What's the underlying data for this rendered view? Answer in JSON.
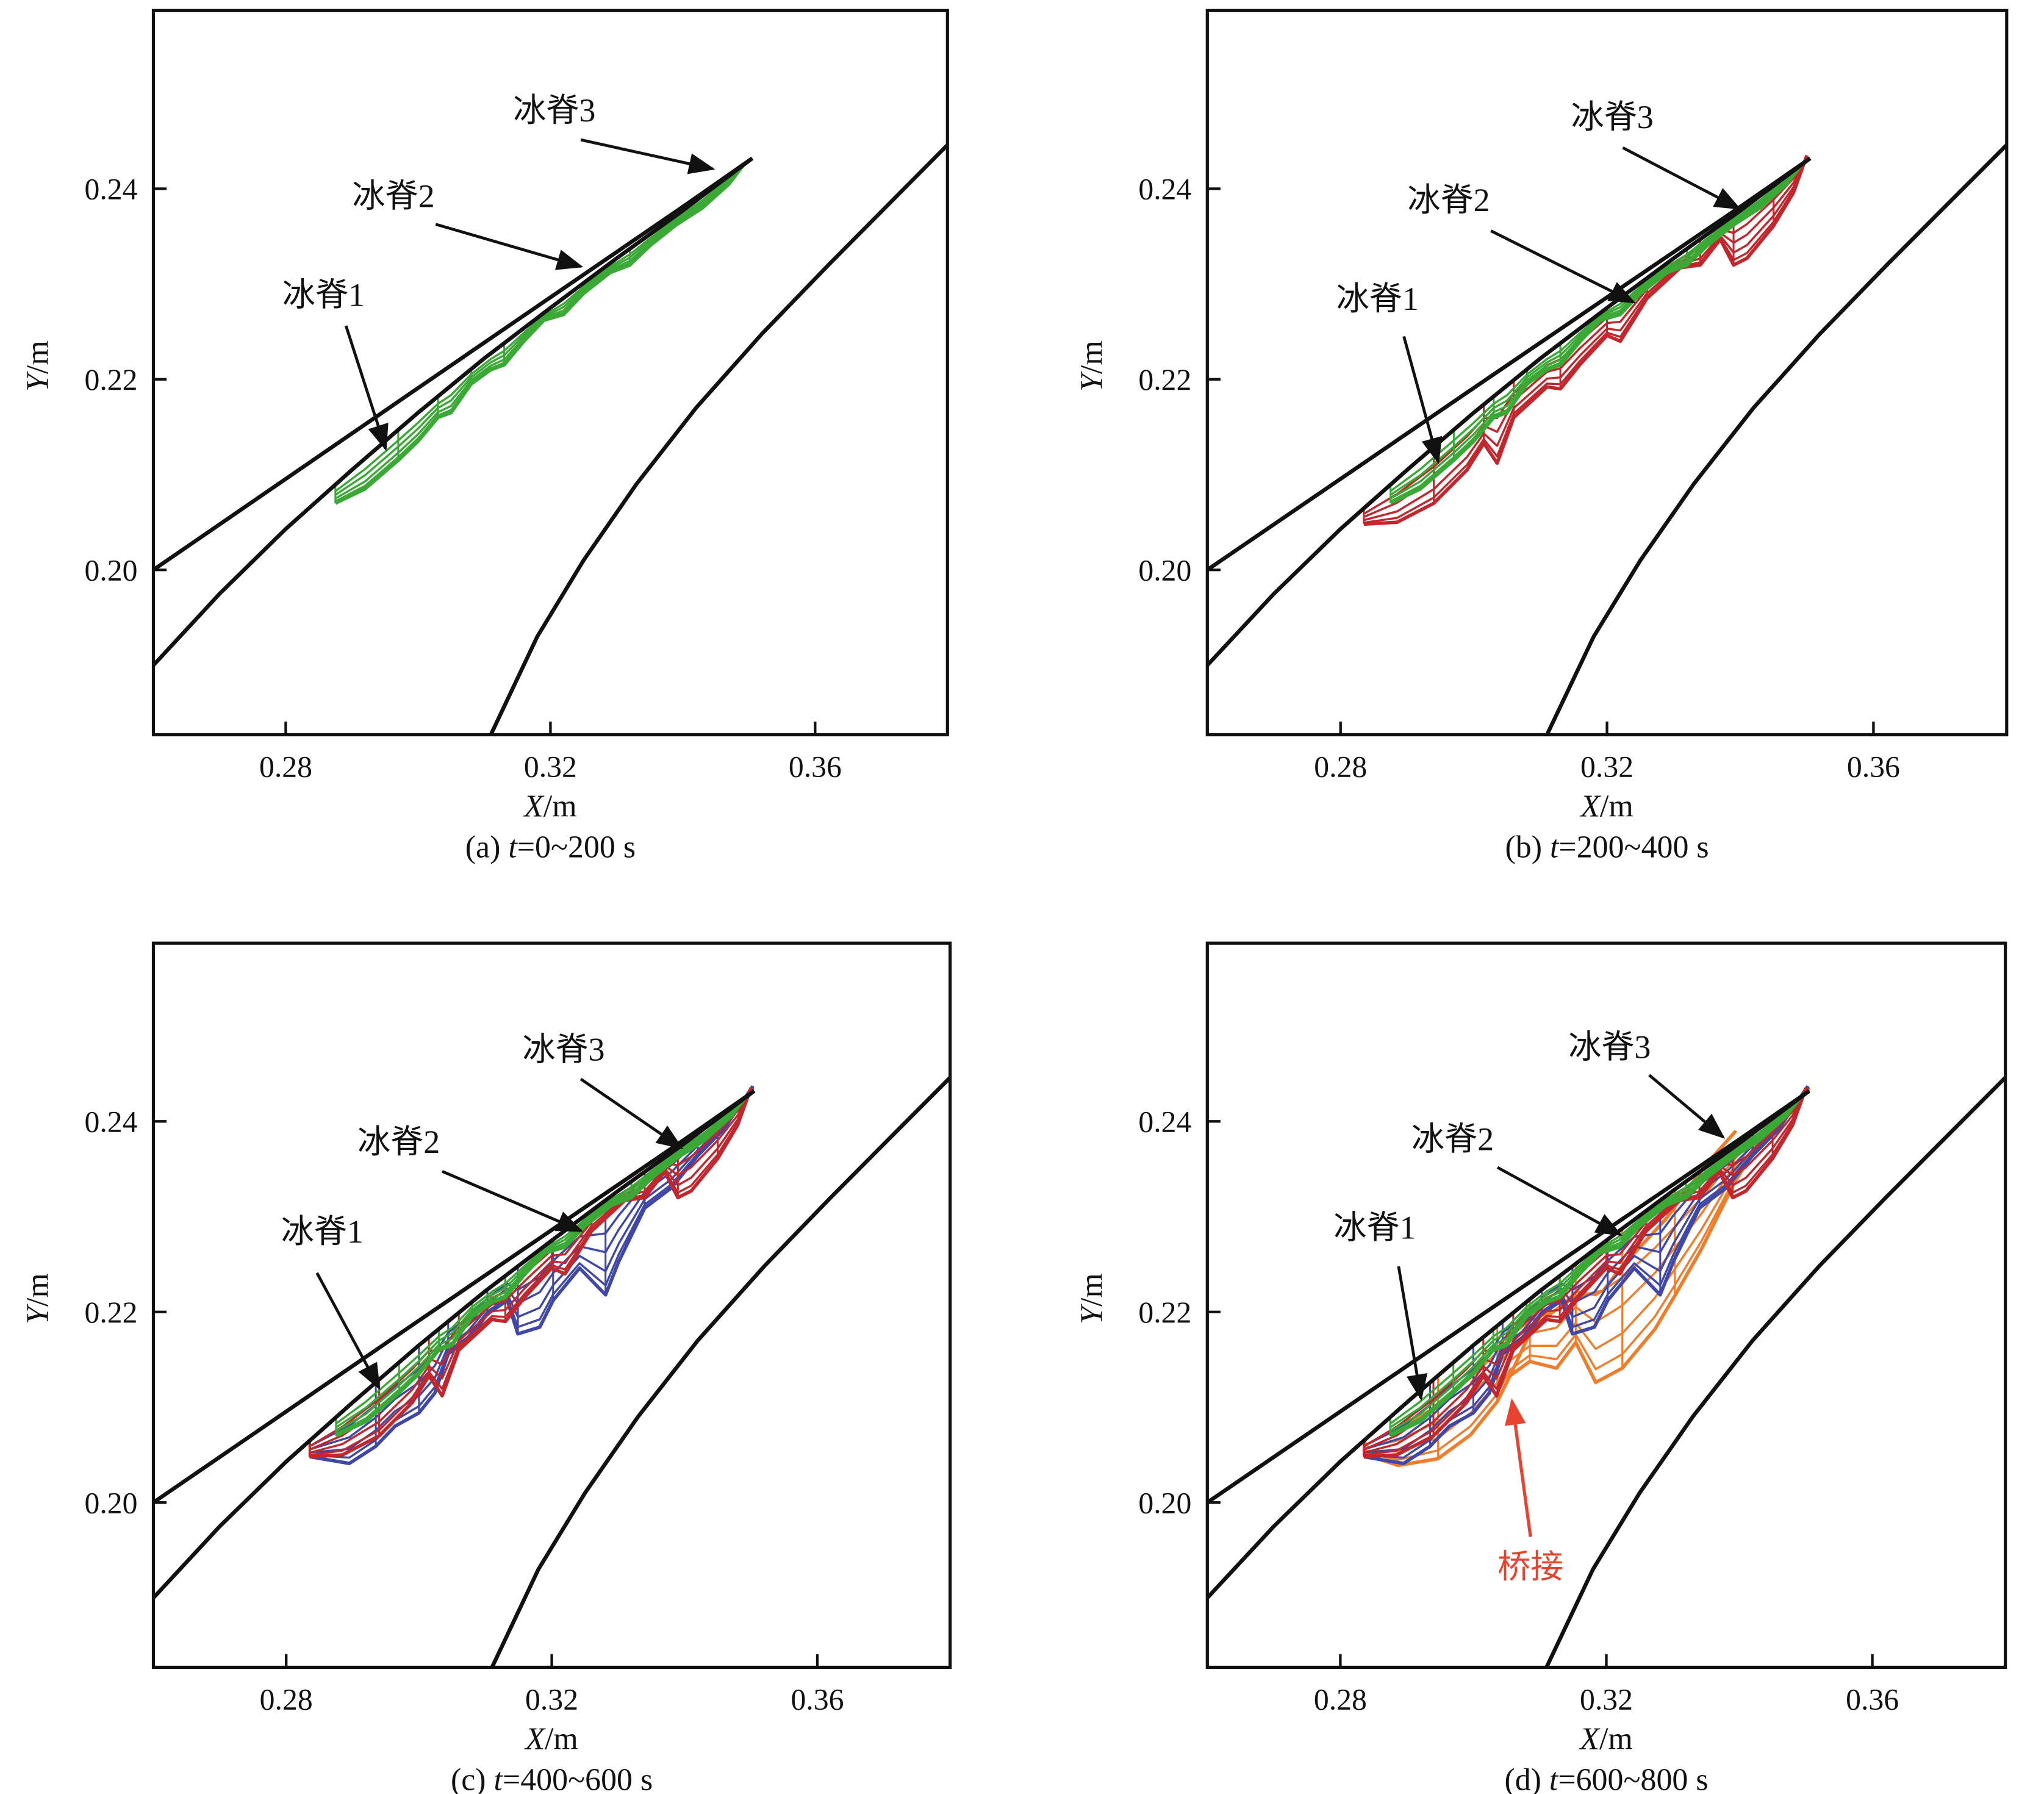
{
  "chart_data": {
    "type": "line",
    "xlim": [
      0.26,
      0.38
    ],
    "ylim": [
      0.1827,
      0.2587
    ],
    "xticks": [
      "0.28",
      "0.32",
      "0.36"
    ],
    "xtick_values": [
      0.28,
      0.32,
      0.36
    ],
    "yticks": [
      "0.20",
      "0.22",
      "0.24"
    ],
    "ytick_values": [
      0.2,
      0.22,
      0.24
    ],
    "xlabel_var": "X",
    "xlabel_unit": "/m",
    "ylabel_var": "Y",
    "ylabel_unit": "/m",
    "colors": {
      "geometry": "#111111",
      "green": "#3aa935",
      "red": "#c1272d",
      "blue": "#3f48a6",
      "orange": "#f07d2c",
      "bridge_label": "#e8432f"
    },
    "curves": {
      "slat_upper": [
        [
          0.26,
          0.2
        ],
        [
          0.3,
          0.2191
        ],
        [
          0.32,
          0.2286
        ],
        [
          0.34,
          0.2381
        ],
        [
          0.3505,
          0.2432
        ]
      ],
      "slat_lower": [
        [
          0.26,
          0.19
        ],
        [
          0.27,
          0.1975
        ],
        [
          0.28,
          0.2043
        ],
        [
          0.29,
          0.2105
        ],
        [
          0.3,
          0.2165
        ],
        [
          0.31,
          0.2222
        ],
        [
          0.32,
          0.2275
        ],
        [
          0.33,
          0.2327
        ],
        [
          0.34,
          0.2377
        ],
        [
          0.3505,
          0.2432
        ]
      ],
      "main_element": [
        [
          0.311,
          0.1827
        ],
        [
          0.318,
          0.193
        ],
        [
          0.325,
          0.201
        ],
        [
          0.333,
          0.209
        ],
        [
          0.342,
          0.217
        ],
        [
          0.352,
          0.2248
        ],
        [
          0.362,
          0.232
        ],
        [
          0.372,
          0.239
        ],
        [
          0.38,
          0.2446
        ]
      ]
    },
    "ice": {
      "green": [
        [
          0.2875,
          0.207
        ],
        [
          0.292,
          0.2085
        ],
        [
          0.297,
          0.2115
        ],
        [
          0.3,
          0.2135
        ],
        [
          0.303,
          0.216
        ],
        [
          0.305,
          0.2165
        ],
        [
          0.308,
          0.2195
        ],
        [
          0.311,
          0.221
        ],
        [
          0.313,
          0.2215
        ],
        [
          0.316,
          0.224
        ],
        [
          0.319,
          0.2262
        ],
        [
          0.322,
          0.2268
        ],
        [
          0.325,
          0.229
        ],
        [
          0.329,
          0.2312
        ],
        [
          0.332,
          0.232
        ],
        [
          0.335,
          0.234
        ],
        [
          0.339,
          0.2362
        ],
        [
          0.343,
          0.238
        ],
        [
          0.347,
          0.2405
        ],
        [
          0.3495,
          0.2428
        ]
      ],
      "red": [
        [
          0.2835,
          0.2048
        ],
        [
          0.2885,
          0.205
        ],
        [
          0.294,
          0.207
        ],
        [
          0.299,
          0.2105
        ],
        [
          0.3015,
          0.2133
        ],
        [
          0.3035,
          0.2112
        ],
        [
          0.306,
          0.216
        ],
        [
          0.311,
          0.2192
        ],
        [
          0.313,
          0.219
        ],
        [
          0.316,
          0.2216
        ],
        [
          0.32,
          0.2246
        ],
        [
          0.322,
          0.224
        ],
        [
          0.326,
          0.2285
        ],
        [
          0.331,
          0.2317
        ],
        [
          0.334,
          0.232
        ],
        [
          0.337,
          0.2347
        ],
        [
          0.339,
          0.232
        ],
        [
          0.341,
          0.2327
        ],
        [
          0.345,
          0.2361
        ],
        [
          0.348,
          0.2396
        ],
        [
          0.35,
          0.2435
        ]
      ],
      "blue": [
        [
          0.2836,
          0.2048
        ],
        [
          0.2895,
          0.2041
        ],
        [
          0.2935,
          0.2059
        ],
        [
          0.2964,
          0.208
        ],
        [
          0.3,
          0.2094
        ],
        [
          0.3024,
          0.2115
        ],
        [
          0.3044,
          0.2156
        ],
        [
          0.3073,
          0.217
        ],
        [
          0.3103,
          0.2198
        ],
        [
          0.3133,
          0.2212
        ],
        [
          0.3149,
          0.2177
        ],
        [
          0.3182,
          0.2184
        ],
        [
          0.3202,
          0.2212
        ],
        [
          0.3242,
          0.2246
        ],
        [
          0.3281,
          0.2218
        ],
        [
          0.3301,
          0.2253
        ],
        [
          0.334,
          0.2309
        ],
        [
          0.338,
          0.233
        ],
        [
          0.342,
          0.2364
        ],
        [
          0.3459,
          0.2392
        ],
        [
          0.3503,
          0.2437
        ]
      ],
      "orange": [
        [
          0.2838,
          0.205
        ],
        [
          0.2887,
          0.2039
        ],
        [
          0.2947,
          0.2046
        ],
        [
          0.2996,
          0.2071
        ],
        [
          0.3036,
          0.2106
        ],
        [
          0.3055,
          0.2133
        ],
        [
          0.3085,
          0.2148
        ],
        [
          0.3125,
          0.2141
        ],
        [
          0.3154,
          0.2168
        ],
        [
          0.3184,
          0.2126
        ],
        [
          0.3224,
          0.2141
        ],
        [
          0.3273,
          0.2182
        ],
        [
          0.3303,
          0.2217
        ],
        [
          0.3343,
          0.2266
        ],
        [
          0.3392,
          0.2335
        ],
        [
          0.3442,
          0.239
        ],
        [
          0.3481,
          0.2411
        ],
        [
          0.3505,
          0.2436
        ]
      ],
      "orange_inner": [
        [
          0.3055,
          0.2133
        ],
        [
          0.309,
          0.2185
        ],
        [
          0.315,
          0.2215
        ],
        [
          0.3195,
          0.2222
        ],
        [
          0.322,
          0.2245
        ],
        [
          0.329,
          0.2298
        ],
        [
          0.335,
          0.2355
        ],
        [
          0.3395,
          0.239
        ]
      ]
    },
    "panels": [
      {
        "id": "a",
        "caption_prefix": "(a) ",
        "caption_var": "t",
        "caption_suffix": "=0~200 s",
        "series": [
          "green"
        ]
      },
      {
        "id": "b",
        "caption_prefix": "(b) ",
        "caption_var": "t",
        "caption_suffix": "=200~400 s",
        "series": [
          "green",
          "red"
        ]
      },
      {
        "id": "c",
        "caption_prefix": "(c) ",
        "caption_var": "t",
        "caption_suffix": "=400~600 s",
        "series": [
          "green",
          "red",
          "blue"
        ]
      },
      {
        "id": "d",
        "caption_prefix": "(d) ",
        "caption_var": "t",
        "caption_suffix": "=600~800 s",
        "series": [
          "green",
          "red",
          "blue",
          "orange"
        ]
      }
    ],
    "annotations": {
      "ridge1": "冰脊1",
      "ridge2": "冰脊2",
      "ridge3": "冰脊3",
      "bridge": "桥接"
    }
  }
}
